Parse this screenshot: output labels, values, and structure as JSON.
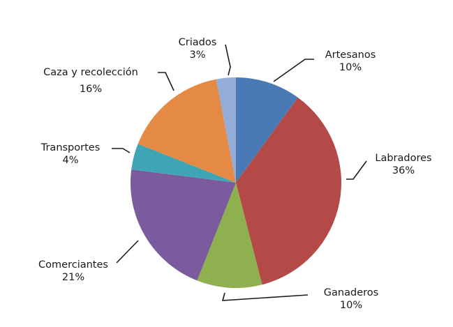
{
  "chart_data": {
    "type": "pie",
    "title": "",
    "start_angle": "12 o'clock",
    "direction": "clockwise",
    "legend": "none (data labels with leader lines)",
    "slices": [
      {
        "label": "Artesanos",
        "value": 10,
        "display": "10%",
        "color": "#4a7ab5"
      },
      {
        "label": "Labradores",
        "value": 36,
        "display": "36%",
        "color": "#b44a48"
      },
      {
        "label": "Ganaderos",
        "value": 10,
        "display": "10%",
        "color": "#8fb04e"
      },
      {
        "label": "Comerciantes",
        "value": 21,
        "display": "21%",
        "color": "#7a5c9e"
      },
      {
        "label": "Transportes",
        "value": 4,
        "display": "4%",
        "color": "#3fa4b4"
      },
      {
        "label": "Caza y recolección",
        "value": 16,
        "display": "16%",
        "color": "#e48a45"
      },
      {
        "label": "Criados",
        "value": 3,
        "display": "3%",
        "color": "#93acd8"
      }
    ]
  },
  "labels": {
    "artesanos": {
      "name": "Artesanos",
      "pct": "10%"
    },
    "labradores": {
      "name": "Labradores",
      "pct": "36%"
    },
    "ganaderos": {
      "name": "Ganaderos",
      "pct": "10%"
    },
    "comerciantes": {
      "name": "Comerciantes",
      "pct": "21%"
    },
    "transportes": {
      "name": "Transportes",
      "pct": "4%"
    },
    "caza": {
      "name": "Caza y recolección",
      "pct": "16%"
    },
    "criados": {
      "name": "Criados",
      "pct": "3%"
    }
  }
}
